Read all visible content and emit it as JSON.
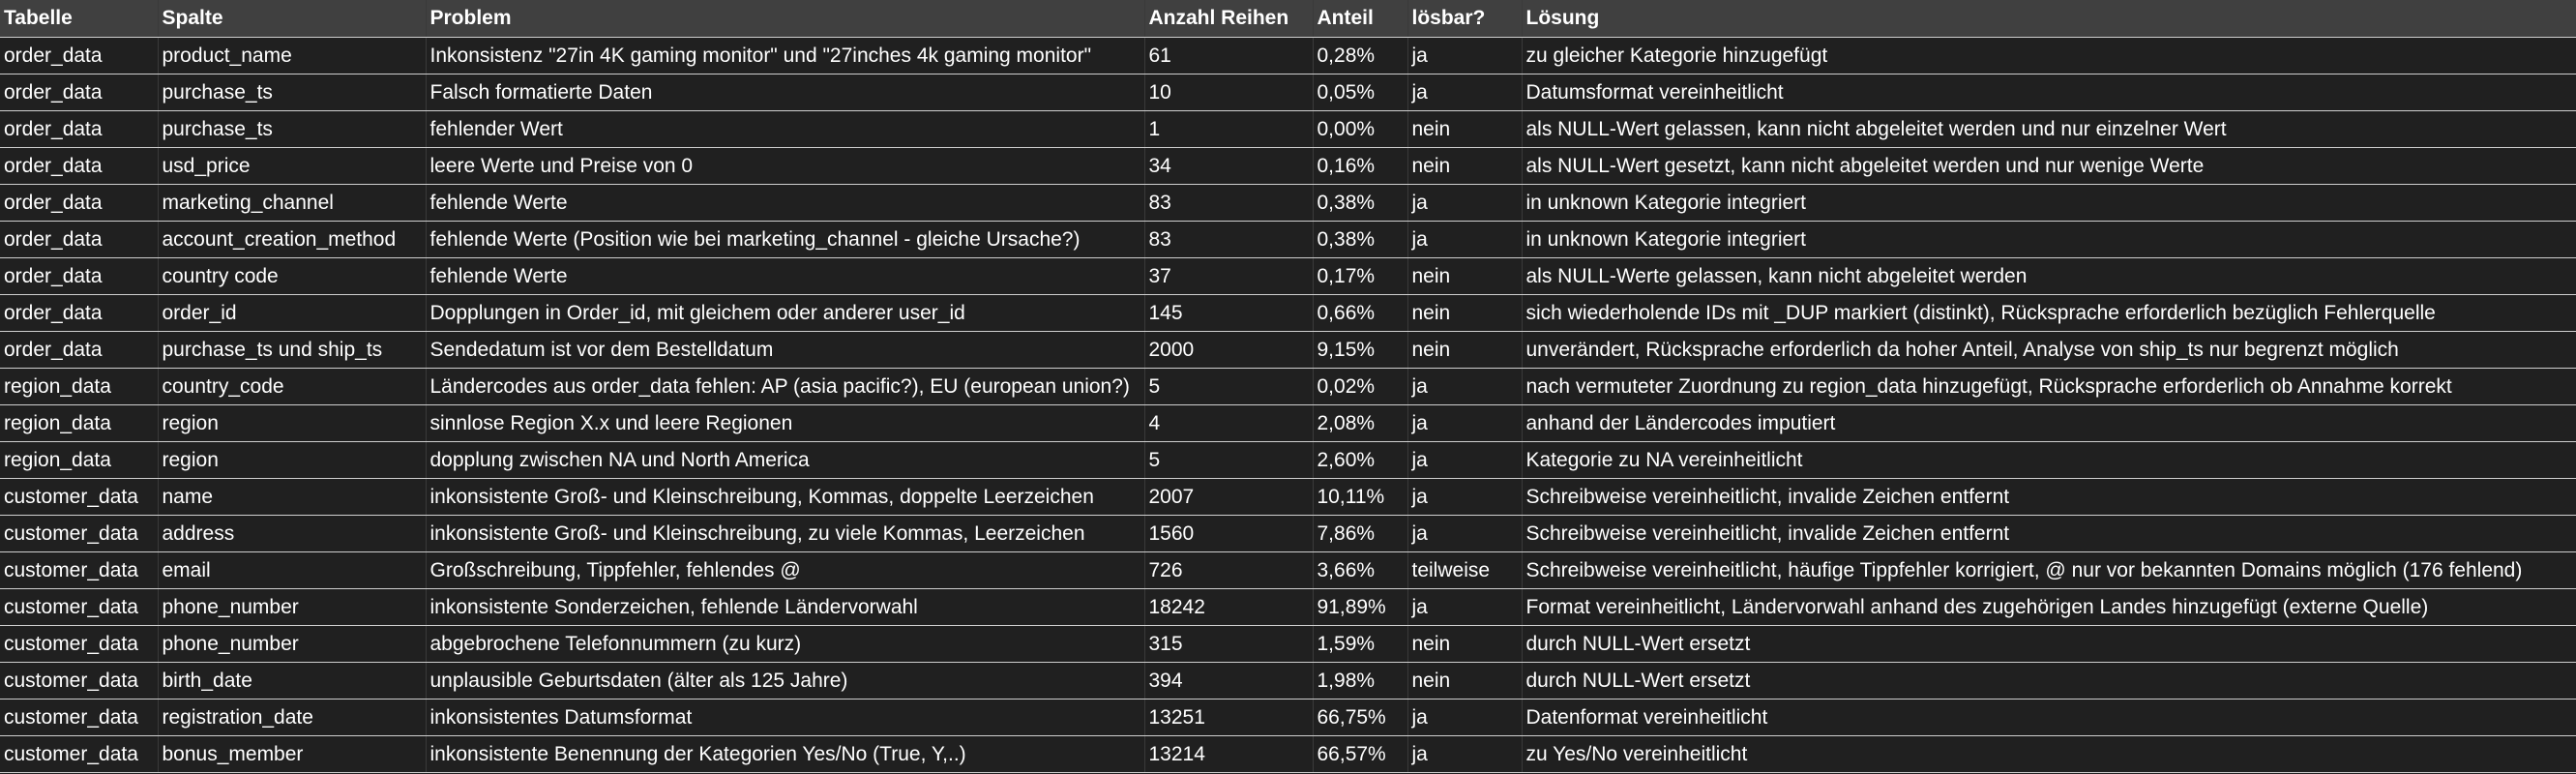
{
  "table": {
    "headers": [
      "Tabelle",
      "Spalte",
      "Problem",
      "Anzahl Reihen",
      "Anteil",
      "lösbar?",
      "Lösung"
    ],
    "rows": [
      [
        "order_data",
        "product_name",
        "Inkonsistenz \"27in 4K gaming monitor\" und \"27inches 4k gaming monitor\"",
        "61",
        "0,28%",
        "ja",
        "zu gleicher Kategorie hinzugefügt"
      ],
      [
        "order_data",
        "purchase_ts",
        "Falsch formatierte Daten",
        "10",
        "0,05%",
        "ja",
        "Datumsformat vereinheitlicht"
      ],
      [
        "order_data",
        "purchase_ts",
        "fehlender Wert",
        "1",
        "0,00%",
        "nein",
        "als NULL-Wert gelassen, kann nicht abgeleitet werden und nur einzelner Wert"
      ],
      [
        "order_data",
        "usd_price",
        "leere Werte und Preise von 0",
        "34",
        "0,16%",
        "nein",
        "als NULL-Wert gesetzt, kann  nicht abgeleitet werden und nur wenige Werte"
      ],
      [
        "order_data",
        "marketing_channel",
        "fehlende Werte",
        "83",
        "0,38%",
        "ja",
        "in unknown Kategorie integriert"
      ],
      [
        "order_data",
        "account_creation_method",
        "fehlende Werte (Position wie bei marketing_channel - gleiche Ursache?)",
        "83",
        "0,38%",
        "ja",
        "in unknown Kategorie integriert"
      ],
      [
        "order_data",
        "country code",
        "fehlende Werte",
        "37",
        "0,17%",
        "nein",
        "als NULL-Werte gelassen, kann nicht abgeleitet werden"
      ],
      [
        "order_data",
        "order_id",
        "Dopplungen in Order_id, mit gleichem oder anderer user_id",
        "145",
        "0,66%",
        "nein",
        "sich wiederholende IDs mit _DUP markiert (distinkt), Rücksprache erforderlich bezüglich Fehlerquelle"
      ],
      [
        "order_data",
        "purchase_ts und ship_ts",
        "Sendedatum ist vor dem Bestelldatum",
        "2000",
        "9,15%",
        "nein",
        "unverändert, Rücksprache erforderlich da hoher Anteil, Analyse von ship_ts nur begrenzt möglich"
      ],
      [
        "region_data",
        "country_code",
        "Ländercodes aus order_data fehlen: AP (asia pacific?), EU (european union?)",
        "5",
        "0,02%",
        "ja",
        "nach vermuteter Zuordnung zu region_data hinzugefügt, Rücksprache erforderlich ob Annahme korrekt"
      ],
      [
        "region_data",
        "region",
        "sinnlose Region X.x und leere Regionen",
        "4",
        "2,08%",
        "ja",
        "anhand der Ländercodes imputiert"
      ],
      [
        "region_data",
        "region",
        "dopplung zwischen NA und North America",
        "5",
        "2,60%",
        "ja",
        "Kategorie zu NA vereinheitlicht"
      ],
      [
        "customer_data",
        "name",
        "inkonsistente Groß- und Kleinschreibung, Kommas, doppelte Leerzeichen",
        "2007",
        "10,11%",
        "ja",
        "Schreibweise vereinheitlicht, invalide Zeichen entfernt"
      ],
      [
        "customer_data",
        "address",
        "inkonsistente Groß- und Kleinschreibung, zu viele Kommas, Leerzeichen",
        "1560",
        "7,86%",
        "ja",
        "Schreibweise vereinheitlicht, invalide Zeichen entfernt"
      ],
      [
        "customer_data",
        "email",
        "Großschreibung, Tippfehler, fehlendes @",
        "726",
        "3,66%",
        "teilweise",
        "Schreibweise vereinheitlicht, häufige Tippfehler korrigiert, @ nur vor bekannten Domains möglich (176  fehlend)"
      ],
      [
        "customer_data",
        "phone_number",
        "inkonsistente Sonderzeichen, fehlende Ländervorwahl",
        "18242",
        "91,89%",
        "ja",
        "Format vereinheitlicht, Ländervorwahl anhand des zugehörigen Landes hinzugefügt (externe Quelle)"
      ],
      [
        "customer_data",
        "phone_number",
        "abgebrochene Telefonnummern (zu kurz)",
        "315",
        "1,59%",
        "nein",
        "durch NULL-Wert ersetzt"
      ],
      [
        "customer_data",
        "birth_date",
        "unplausible Geburtsdaten (älter als 125 Jahre)",
        "394",
        "1,98%",
        "nein",
        "durch NULL-Wert ersetzt"
      ],
      [
        "customer_data",
        "registration_date",
        "inkonsistentes Datumsformat",
        "13251",
        "66,75%",
        "ja",
        "Datenformat vereinheitlicht"
      ],
      [
        "customer_data",
        "bonus_member",
        "inkonsistente Benennung der Kategorien Yes/No (True, Y,..)",
        "13214",
        "66,57%",
        "ja",
        "zu Yes/No vereinheitlicht"
      ]
    ]
  }
}
